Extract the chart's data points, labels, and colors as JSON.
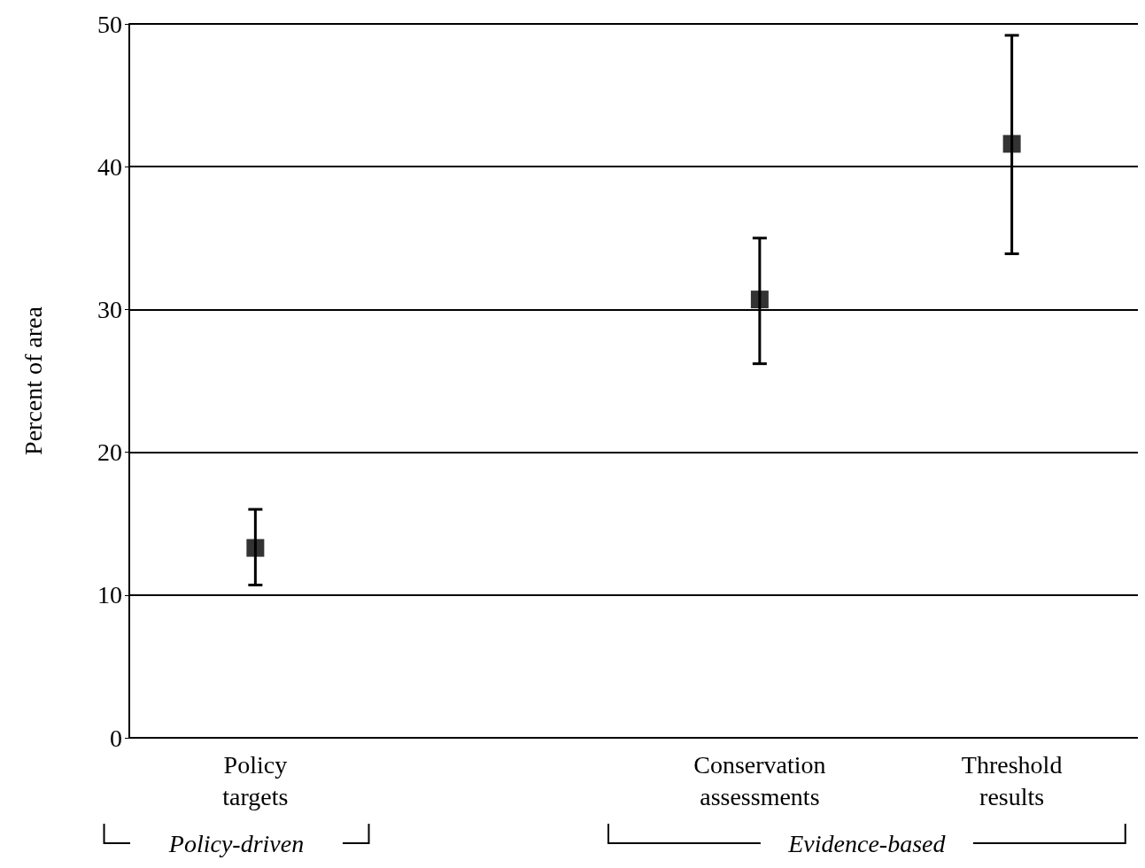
{
  "chart_data": {
    "type": "scatter",
    "ylabel": "Percent of area",
    "categories": [
      "Policy\ntargets",
      null,
      "Conservation\nassessments",
      "Threshold\nresults"
    ],
    "values": [
      13.3,
      null,
      30.7,
      41.6
    ],
    "errors": [
      [
        10.7,
        16.0
      ],
      null,
      [
        26.2,
        35.0
      ],
      [
        33.9,
        49.2
      ]
    ],
    "color": "#000000",
    "marker": "square",
    "ylim": [
      0,
      50
    ],
    "yticks": [
      0,
      10,
      20,
      30,
      40,
      50
    ],
    "grid": "y",
    "annotations": [
      "Policy-driven",
      "Evidence-based"
    ]
  }
}
